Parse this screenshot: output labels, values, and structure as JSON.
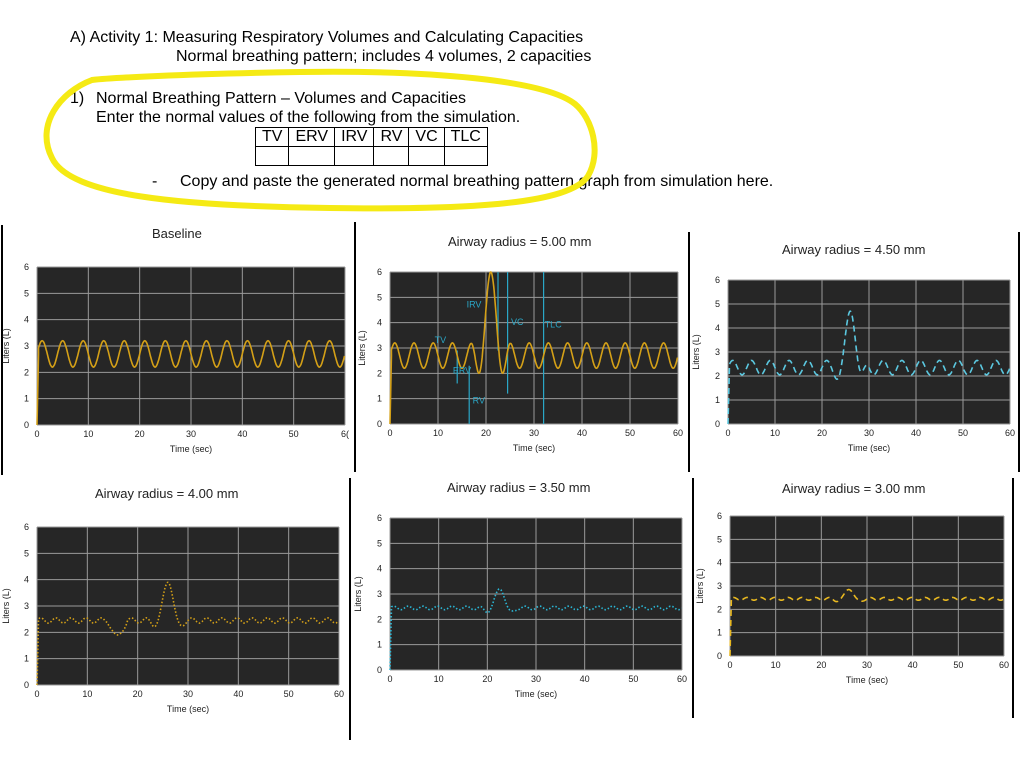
{
  "document": {
    "heading": "A) Activity 1: Measuring Respiratory Volumes and Calculating Capacities",
    "subheading": "Normal breathing pattern; includes 4 volumes, 2 capacities",
    "question_number": "1)",
    "question_title": "Normal Breathing Pattern – Volumes and Capacities",
    "instruction": "Enter the normal values of the following from the simulation.",
    "table_headers": [
      "TV",
      "ERV",
      "IRV",
      "RV",
      "VC",
      "TLC"
    ],
    "bullet_dash": "-",
    "bullet_text": "Copy and paste the generated normal breathing pattern graph from simulation here.",
    "highlight_color": "#f5ea14"
  },
  "chart_data": [
    {
      "type": "line",
      "title": "Baseline",
      "xlabel": "Time (sec)",
      "ylabel": "Liters (L)",
      "xlim": [
        0,
        60
      ],
      "ylim": [
        0,
        6
      ],
      "x_ticks": [
        "0",
        "10",
        "20",
        "30",
        "40",
        "50",
        "6("
      ],
      "y_ticks": [
        "0",
        "1",
        "2",
        "3",
        "4",
        "5",
        "6"
      ],
      "grid": true,
      "style": "solid",
      "color": "#d4a017",
      "series": [
        {
          "baseline": 2.7,
          "amplitude": 0.5,
          "period_sec": 4.0,
          "spikes": []
        }
      ]
    },
    {
      "type": "line",
      "title": "Airway radius = 5.00 mm",
      "xlabel": "Time (sec)",
      "ylabel": "Liters (L)",
      "xlim": [
        0,
        60
      ],
      "ylim": [
        0,
        6
      ],
      "x_ticks": [
        "0",
        "10",
        "20",
        "30",
        "40",
        "50",
        "60"
      ],
      "y_ticks": [
        "0",
        "1",
        "2",
        "3",
        "4",
        "5",
        "6"
      ],
      "grid": true,
      "style": "solid",
      "color": "#d4a017",
      "annotation_color": "#2aa7c7",
      "annotations": [
        {
          "label": "IRV",
          "x": 17.5,
          "y": 4.6
        },
        {
          "label": "VC",
          "x": 26.5,
          "y": 3.9
        },
        {
          "label": "TLC",
          "x": 34,
          "y": 3.8
        },
        {
          "label": "TV",
          "x": 10.5,
          "y": 3.2
        },
        {
          "label": "ERV",
          "x": 15,
          "y": 2.0
        },
        {
          "label": "RV",
          "x": 18.5,
          "y": 0.8
        }
      ],
      "markers": [
        {
          "x": 14,
          "y0": 1.6,
          "y1": 2.9
        },
        {
          "x": 16.5,
          "y0": 0,
          "y1": 2.3
        },
        {
          "x": 22.5,
          "y0": 2.9,
          "y1": 6
        },
        {
          "x": 24.5,
          "y0": 1.2,
          "y1": 6
        },
        {
          "x": 32,
          "y0": 0,
          "y1": 6
        }
      ],
      "series": [
        {
          "baseline": 2.7,
          "amplitude": 0.5,
          "period_sec": 4.0,
          "spikes": [
            {
              "center": 21,
              "shape": "deep",
              "min": 1.2,
              "max": 6.0
            }
          ]
        }
      ]
    },
    {
      "type": "line",
      "title": "Airway radius = 4.50 mm",
      "xlabel": "Time (sec)",
      "ylabel": "Liters (L)",
      "xlim": [
        0,
        60
      ],
      "ylim": [
        0,
        6
      ],
      "x_ticks": [
        "0",
        "10",
        "20",
        "30",
        "40",
        "50",
        "60"
      ],
      "y_ticks": [
        "0",
        "1",
        "2",
        "3",
        "4",
        "5",
        "6"
      ],
      "grid": true,
      "style": "dash",
      "color": "#5bc8e0",
      "series": [
        {
          "baseline": 2.35,
          "amplitude": 0.3,
          "period_sec": 4.0,
          "spikes": [
            {
              "center": 26,
              "shape": "deep",
              "min": 1.4,
              "max": 4.7
            }
          ]
        }
      ]
    },
    {
      "type": "line",
      "title": "Airway radius = 4.00 mm",
      "xlabel": "Time (sec)",
      "ylabel": "Liters (L)",
      "xlim": [
        0,
        60
      ],
      "ylim": [
        0,
        6
      ],
      "x_ticks": [
        "0",
        "10",
        "20",
        "30",
        "40",
        "50",
        "60"
      ],
      "y_ticks": [
        "0",
        "1",
        "2",
        "3",
        "4",
        "5",
        "6"
      ],
      "grid": true,
      "style": "dot",
      "color": "#d4a017",
      "series": [
        {
          "baseline": 2.45,
          "amplitude": 0.1,
          "period_sec": 3.0,
          "spikes": [
            {
              "center": 26,
              "shape": "deep",
              "min": 1.9,
              "max": 3.9
            },
            {
              "center": 16,
              "shape": "dip",
              "min": 1.9,
              "max": 2.5
            }
          ]
        }
      ]
    },
    {
      "type": "line",
      "title": "Airway radius = 3.50 mm",
      "xlabel": "Time (sec)",
      "ylabel": "Liters (L)",
      "xlim": [
        0,
        60
      ],
      "ylim": [
        0,
        6
      ],
      "x_ticks": [
        "0",
        "10",
        "20",
        "30",
        "40",
        "50",
        "60"
      ],
      "y_ticks": [
        "0",
        "1",
        "2",
        "3",
        "4",
        "5",
        "6"
      ],
      "grid": true,
      "style": "dot",
      "color": "#2ab7d6",
      "series": [
        {
          "baseline": 2.45,
          "amplitude": 0.07,
          "period_sec": 3.0,
          "spikes": [
            {
              "center": 22.5,
              "shape": "deep",
              "min": 2.0,
              "max": 3.2
            }
          ]
        }
      ]
    },
    {
      "type": "line",
      "title": "Airway radius = 3.00 mm",
      "xlabel": "Time (sec)",
      "ylabel": "Liters (L)",
      "xlim": [
        0,
        60
      ],
      "ylim": [
        0,
        6
      ],
      "x_ticks": [
        "0",
        "10",
        "20",
        "30",
        "40",
        "50",
        "60"
      ],
      "y_ticks": [
        "0",
        "1",
        "2",
        "3",
        "4",
        "5",
        "6"
      ],
      "grid": true,
      "style": "dash",
      "color": "#e8b820",
      "series": [
        {
          "baseline": 2.45,
          "amplitude": 0.06,
          "period_sec": 3.0,
          "spikes": [
            {
              "center": 26,
              "shape": "deep",
              "min": 2.2,
              "max": 2.85
            }
          ]
        }
      ]
    }
  ]
}
